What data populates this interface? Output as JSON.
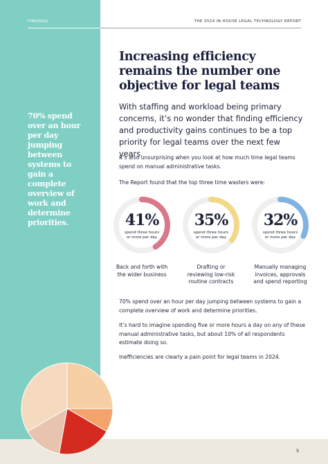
{
  "header": {
    "section": "FINDINGS",
    "report": "THE 2024 IN-HOUSE LEGAL TECHNOLOGY REPORT"
  },
  "title": "Increasing efficiency remains the number one objective for legal teams",
  "pull_quote": "70% spend over an hour per day jumping between systems to gain a complete overview of work and determine priorities.",
  "intro": "With staffing and workload being primary concerns, it’s no wonder that finding efficiency and productivity gains continues to be a top priority for legal teams over the next few years.",
  "paragraphs_before": [
    "It’s also unsurprising when you look at how much time legal teams spend on manual administrative tasks.",
    "The Report found that the top three time wasters were:"
  ],
  "stats": [
    {
      "value": 41,
      "label": "41%",
      "caption": "spend three hours or more per day",
      "description": "Back and forth with the wider business",
      "color": "#d9788a"
    },
    {
      "value": 35,
      "label": "35%",
      "caption": "spend three hours or more per day",
      "description": "Drafting or reviewing low-risk routine contracts",
      "color": "#f2d98a"
    },
    {
      "value": 32,
      "label": "32%",
      "caption": "spend three hours or more per day",
      "description": "Manually managing invoices, approvals and spend reporting",
      "color": "#80b3e2"
    }
  ],
  "paragraphs_after": [
    "70% spend over an hour per day jumping between systems to gain a complete overview of work and determine priorities.",
    "It’s hard to imagine spending five or more hours a day on any of these manual administrative tasks, but about 10% of all respondents estimate doing so.",
    "Inefficiencies are clearly a pain point for legal teams in 2024."
  ],
  "page_number": "5"
}
